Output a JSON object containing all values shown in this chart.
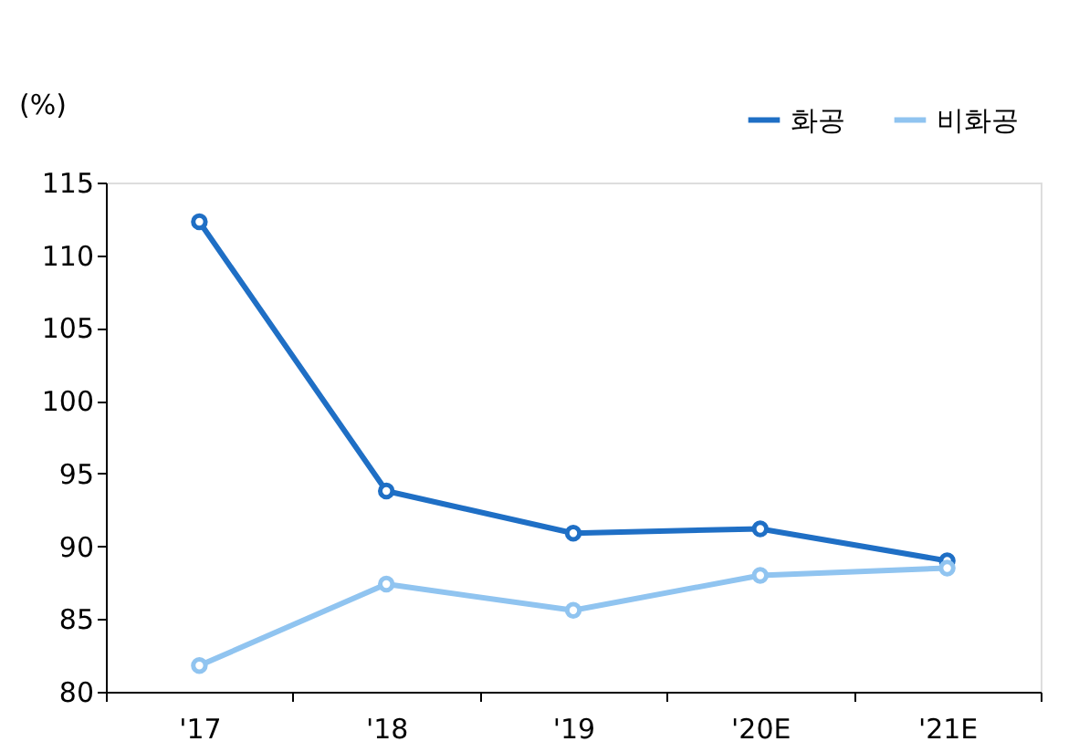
{
  "chart_data": {
    "type": "line",
    "ylabel": "(%)",
    "categories": [
      "'17",
      "'18",
      "'19",
      "'20E",
      "'21E"
    ],
    "series": [
      {
        "name": "화공",
        "color": "#1f6fc5",
        "values": [
          112.3,
          93.8,
          90.9,
          91.2,
          89.0
        ]
      },
      {
        "name": "비화공",
        "color": "#90c4f0",
        "values": [
          81.8,
          87.4,
          85.6,
          88.0,
          88.5
        ]
      }
    ],
    "ylim": [
      80,
      115
    ],
    "yticks": [
      80,
      85,
      90,
      95,
      100,
      105,
      110,
      115
    ],
    "grid": false,
    "legend": "top right",
    "marker": "circle",
    "line_style": "solid"
  }
}
